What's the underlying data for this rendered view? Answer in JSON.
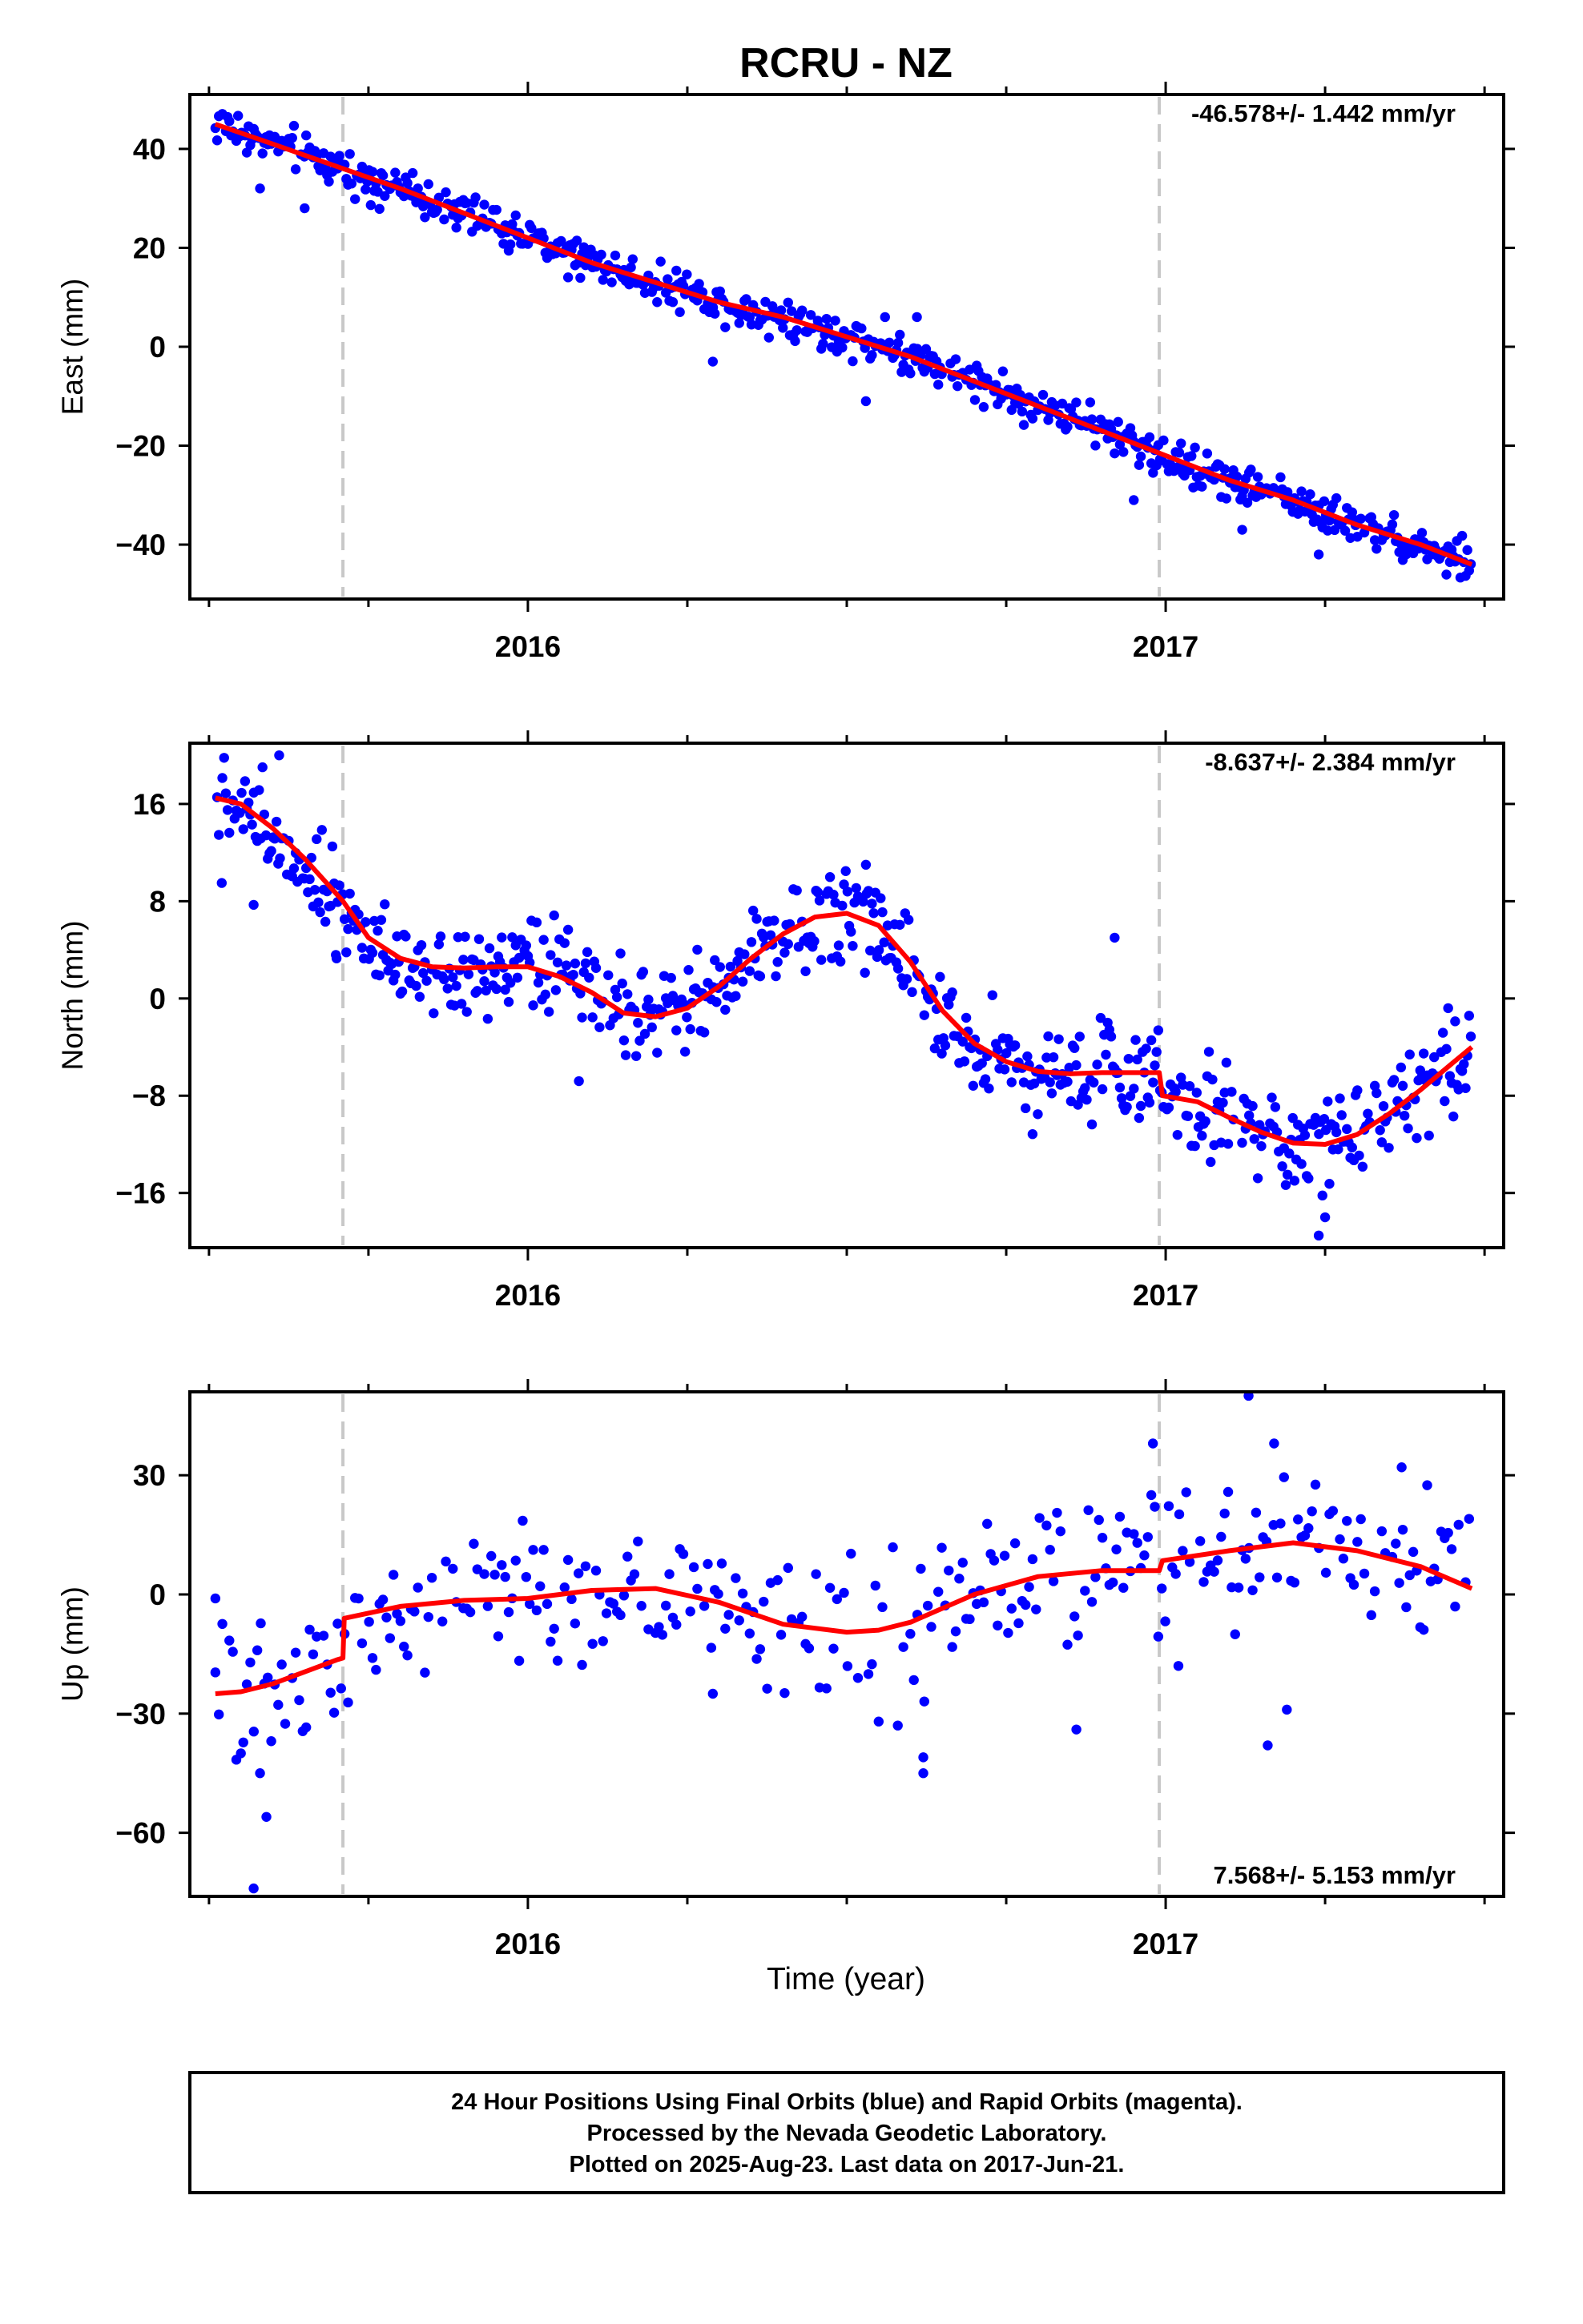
{
  "title": "RCRU - NZ",
  "xlabel": "Time (year)",
  "footer": {
    "line1": "24 Hour Positions Using Final Orbits (blue) and Rapid Orbits (magenta).",
    "line2": "Processed by the Nevada Geodetic Laboratory.",
    "line3": "Plotted on 2025-Aug-23. Last data on 2017-Jun-21."
  },
  "colors": {
    "points": "#0000ff",
    "fit": "#ff0000",
    "event_lines": "#c8c8c8"
  },
  "chart_data": [
    {
      "type": "scatter",
      "ylabel": "East (mm)",
      "rate": "-46.578+/- 1.442 mm/yr",
      "rate_position": "top-right",
      "xlim": [
        2015.47,
        2017.53
      ],
      "ylim": [
        -51,
        51
      ],
      "yticks": [
        -40,
        -20,
        0,
        20,
        40
      ],
      "xticks": [
        2016,
        2017
      ],
      "event_lines": [
        2015.71,
        2016.99
      ],
      "fit": {
        "x": [
          2015.51,
          2015.6,
          2015.71,
          2015.8,
          2015.9,
          2016.0,
          2016.1,
          2016.2,
          2016.3,
          2016.4,
          2016.5,
          2016.6,
          2016.7,
          2016.8,
          2016.9,
          2017.0,
          2017.1,
          2017.2,
          2017.3,
          2017.4,
          2017.48
        ],
        "y": [
          45,
          41,
          36,
          32,
          27,
          22,
          17,
          13,
          9,
          6,
          2,
          -2,
          -7,
          -12,
          -17,
          -22,
          -27,
          -31,
          -36,
          -40,
          -44
        ]
      },
      "outliers": [
        {
          "x": 2015.58,
          "y": 32
        },
        {
          "x": 2015.65,
          "y": 28
        },
        {
          "x": 2016.29,
          "y": -3
        },
        {
          "x": 2016.53,
          "y": -11
        },
        {
          "x": 2016.56,
          "y": 6
        },
        {
          "x": 2016.61,
          "y": 6
        },
        {
          "x": 2016.95,
          "y": -31
        },
        {
          "x": 2017.12,
          "y": -37
        },
        {
          "x": 2017.24,
          "y": -42
        }
      ],
      "scatter_model": {
        "noise": 2.0,
        "every_days": 1
      }
    },
    {
      "type": "scatter",
      "ylabel": "North (mm)",
      "rate": "-8.637+/- 2.384 mm/yr",
      "rate_position": "top-right",
      "xlim": [
        2015.47,
        2017.53
      ],
      "ylim": [
        -20.5,
        21
      ],
      "yticks": [
        -16,
        -8,
        0,
        8,
        16
      ],
      "xticks": [
        2016,
        2017
      ],
      "event_lines": [
        2015.71,
        2016.99
      ],
      "fit": {
        "x": [
          2015.51,
          2015.55,
          2015.6,
          2015.65,
          2015.71,
          2015.75,
          2015.8,
          2015.85,
          2015.9,
          2015.95,
          2016.0,
          2016.05,
          2016.1,
          2016.15,
          2016.2,
          2016.25,
          2016.3,
          2016.35,
          2016.4,
          2016.45,
          2016.5,
          2016.55,
          2016.6,
          2016.65,
          2016.7,
          2016.75,
          2016.8,
          2016.85,
          2016.9,
          2016.95,
          2016.99,
          2016.995,
          2017.05,
          2017.1,
          2017.15,
          2017.2,
          2017.25,
          2017.3,
          2017.35,
          2017.4,
          2017.45,
          2017.48
        ],
        "y": [
          16.5,
          16,
          14,
          11.5,
          8,
          5,
          3.3,
          2.6,
          2.5,
          2.6,
          2.6,
          1.8,
          0.5,
          -1.2,
          -1.5,
          -0.8,
          1,
          3.3,
          5.3,
          6.7,
          7,
          6,
          3,
          -1,
          -3.7,
          -5.2,
          -6,
          -6.2,
          -6.1,
          -6.1,
          -6.1,
          -8,
          -8.5,
          -9.8,
          -11,
          -11.9,
          -12,
          -11.2,
          -9.5,
          -7.5,
          -5.3,
          -4
        ]
      },
      "outliers": [
        {
          "x": 2015.52,
          "y": 9.5
        },
        {
          "x": 2015.57,
          "y": 7.7
        },
        {
          "x": 2015.61,
          "y": 20
        },
        {
          "x": 2015.7,
          "y": 3.3
        },
        {
          "x": 2016.08,
          "y": -6.8
        },
        {
          "x": 2016.53,
          "y": 11
        },
        {
          "x": 2016.92,
          "y": 5
        },
        {
          "x": 2017.24,
          "y": -19.5
        },
        {
          "x": 2017.25,
          "y": -18
        }
      ],
      "scatter_model": {
        "noise": 1.9,
        "every_days": 1
      }
    },
    {
      "type": "scatter",
      "ylabel": "Up (mm)",
      "rate": "7.568+/- 5.153 mm/yr",
      "rate_position": "bottom-right",
      "xlim": [
        2015.47,
        2017.53
      ],
      "ylim": [
        -76,
        51
      ],
      "yticks": [
        -60,
        -30,
        0,
        30
      ],
      "xticks": [
        2016,
        2017
      ],
      "event_lines": [
        2015.71,
        2016.99
      ],
      "fit": {
        "x": [
          2015.51,
          2015.55,
          2015.6,
          2015.65,
          2015.7,
          2015.71,
          2015.712,
          2015.8,
          2015.9,
          2016.0,
          2016.1,
          2016.2,
          2016.3,
          2016.4,
          2016.5,
          2016.55,
          2016.6,
          2016.7,
          2016.8,
          2016.9,
          2016.99,
          2016.995,
          2017.1,
          2017.2,
          2017.3,
          2017.4,
          2017.48
        ],
        "y": [
          -25,
          -24.5,
          -22.5,
          -19.5,
          -16.5,
          -16,
          -6,
          -3,
          -1.5,
          -1,
          1,
          1.5,
          -2,
          -7.5,
          -9.5,
          -9,
          -7,
          0,
          4.5,
          6,
          6,
          8.5,
          11,
          13,
          11,
          7,
          1.5
        ]
      },
      "outliers": [
        {
          "x": 2015.51,
          "y": -1
        },
        {
          "x": 2015.55,
          "y": -40
        },
        {
          "x": 2015.58,
          "y": -45
        },
        {
          "x": 2015.59,
          "y": -56
        },
        {
          "x": 2015.57,
          "y": -74
        },
        {
          "x": 2016.29,
          "y": -25
        },
        {
          "x": 2016.55,
          "y": -32
        },
        {
          "x": 2016.58,
          "y": -33
        },
        {
          "x": 2016.62,
          "y": -41
        },
        {
          "x": 2016.62,
          "y": -45
        },
        {
          "x": 2016.86,
          "y": -34
        },
        {
          "x": 2017.02,
          "y": -18
        },
        {
          "x": 2017.16,
          "y": -38
        },
        {
          "x": 2017.19,
          "y": -29
        },
        {
          "x": 2017.13,
          "y": 50
        },
        {
          "x": 2017.17,
          "y": 38
        },
        {
          "x": 2016.98,
          "y": 38
        },
        {
          "x": 2017.37,
          "y": 32
        }
      ],
      "scatter_model": {
        "noise": 8.5,
        "every_days": 2
      }
    }
  ]
}
